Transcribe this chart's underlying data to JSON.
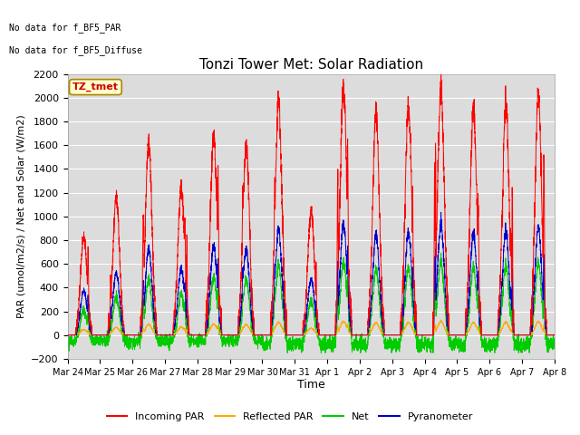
{
  "title": "Tonzi Tower Met: Solar Radiation",
  "ylabel": "PAR (umol/m2/s) / Net and Solar (W/m2)",
  "xlabel": "Time",
  "ylim": [
    -200,
    2200
  ],
  "no_data_text1": "No data for f_BF5_PAR",
  "no_data_text2": "No data for f_BF5_Diffuse",
  "legend_label": "TZ_tmet",
  "legend_color": "#cc0000",
  "legend_bg": "#ffffcc",
  "legend_border": "#aa8800",
  "tick_labels": [
    "Mar 24",
    "Mar 25",
    "Mar 26",
    "Mar 27",
    "Mar 28",
    "Mar 29",
    "Mar 30",
    "Mar 31",
    "Apr 1",
    "Apr 2",
    "Apr 3",
    "Apr 4",
    "Apr 5",
    "Apr 6",
    "Apr 7",
    "Apr 8"
  ],
  "colors": {
    "incoming": "#ff0000",
    "reflected": "#ffaa00",
    "net": "#00cc00",
    "pyranometer": "#0000cc"
  },
  "fig_bg": "#ffffff",
  "plot_bg": "#dcdcdc",
  "grid_color": "#ffffff",
  "n_days": 15,
  "pts_per_day": 288,
  "incoming_peaks": [
    830,
    1170,
    1620,
    1250,
    1660,
    1600,
    1960,
    1050,
    2100,
    1900,
    1920,
    2100,
    1900,
    1950,
    2000
  ],
  "pyranometer_scale": 0.45,
  "reflected_scale": 0.055,
  "net_day_scale": 0.32,
  "net_night": -40
}
